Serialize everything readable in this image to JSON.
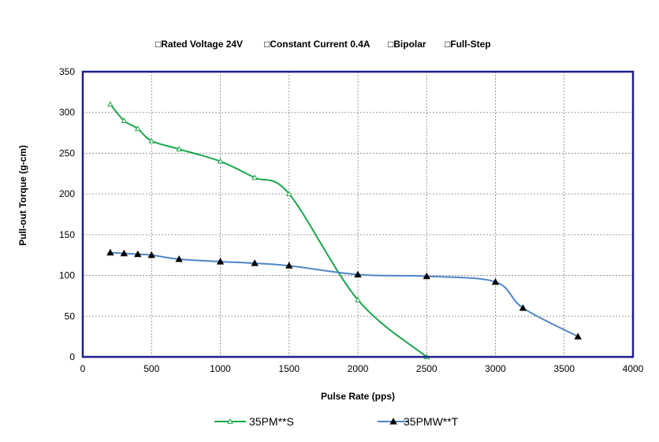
{
  "conditions": [
    "□Rated Voltage 24V",
    "□Constant Current 0.4A",
    "□Bipolar",
    "□Full-Step"
  ],
  "chart_data": {
    "type": "line",
    "xlabel": "Pulse Rate (pps)",
    "ylabel": "Pull-out Torque (g-cm)",
    "xlim": [
      0,
      4000
    ],
    "ylim": [
      0,
      350
    ],
    "xticks": [
      0,
      500,
      1000,
      1500,
      2000,
      2500,
      3000,
      3500,
      4000
    ],
    "yticks": [
      0,
      50,
      100,
      150,
      200,
      250,
      300,
      350
    ],
    "grid": true,
    "legend_position": "bottom",
    "plot_border_color": "#1f1f8f",
    "series": [
      {
        "name": "35PM**S",
        "color": "#1aa64a",
        "marker": "open-triangle",
        "x": [
          200,
          300,
          400,
          500,
          700,
          1000,
          1250,
          1500,
          2000,
          2500
        ],
        "y": [
          310,
          290,
          280,
          265,
          255,
          240,
          220,
          200,
          70,
          0
        ]
      },
      {
        "name": "35PMW**T",
        "color": "#4f86c6",
        "marker": "filled-triangle",
        "x": [
          200,
          300,
          400,
          500,
          700,
          1000,
          1250,
          1500,
          2000,
          2500,
          3000,
          3200,
          3600
        ],
        "y": [
          128,
          127,
          126,
          125,
          120,
          117,
          115,
          112,
          101,
          99,
          92,
          60,
          25
        ]
      }
    ]
  }
}
